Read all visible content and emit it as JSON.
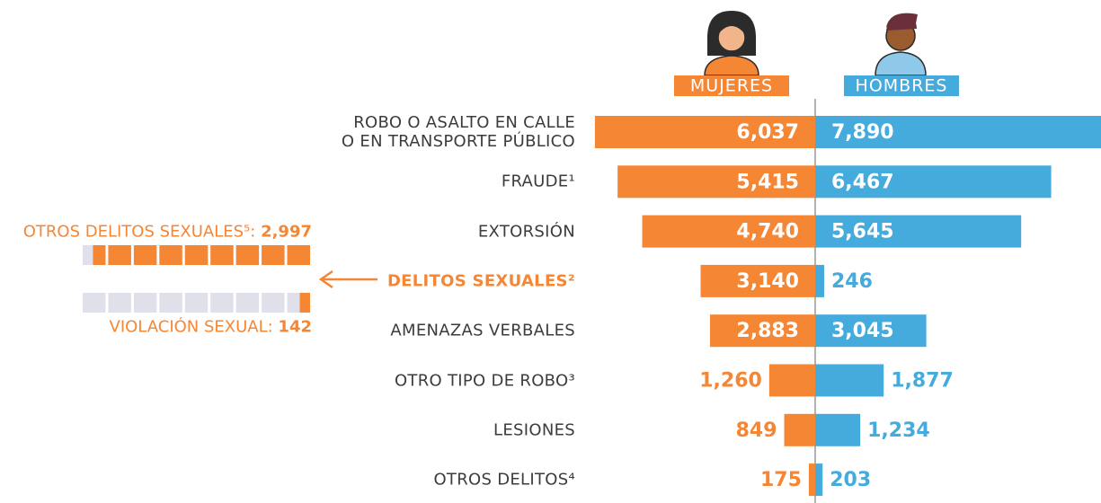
{
  "chart_data": {
    "type": "butterfly",
    "categories": [
      "ROBO O ASALTO EN CALLE\nO EN TRANSPORTE PÚBLICO",
      "FRAUDE¹",
      "EXTORSIÓN",
      "DELITOS SEXUALES²",
      "AMENAZAS VERBALES",
      "OTRO TIPO DE ROBO³",
      "LESIONES",
      "OTROS DELITOS⁴"
    ],
    "highlight_index": 3,
    "series": [
      {
        "name": "MUJERES",
        "color": "#f58634",
        "values": [
          6037,
          5415,
          4740,
          3140,
          2883,
          1260,
          849,
          175
        ],
        "value_labels": [
          "6,037",
          "5,415",
          "4,740",
          "3,140",
          "2,883",
          "1,260",
          "849",
          "175"
        ]
      },
      {
        "name": "HOMBRES",
        "color": "#45aadc",
        "values": [
          7890,
          6467,
          5645,
          246,
          3045,
          1877,
          1234,
          203
        ],
        "value_labels": [
          "7,890",
          "6,467",
          "5,645",
          "246",
          "3,045",
          "1,877",
          "1,234",
          "203"
        ]
      }
    ],
    "breakdown": [
      {
        "label": "OTROS DELITOS SEXUALES⁵:",
        "value": 2997,
        "value_label": "2,997"
      },
      {
        "label": "VIOLACIÓN SEXUAL:",
        "value": 142,
        "value_label": "142"
      }
    ]
  }
}
